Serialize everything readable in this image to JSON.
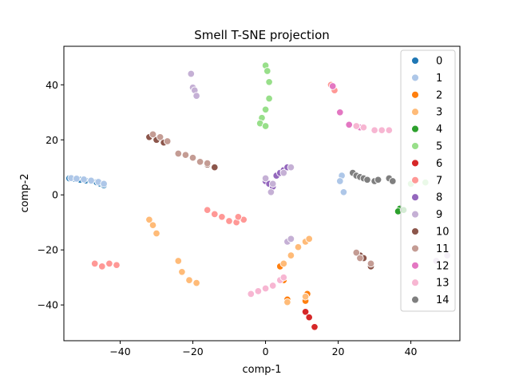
{
  "chart_data": {
    "type": "scatter",
    "title": "Smell T-SNE projection",
    "xlabel": "comp-1",
    "ylabel": "comp-2",
    "xlim": [
      -55.5,
      53.5
    ],
    "ylim": [
      -53,
      54
    ],
    "xticks": [
      -40,
      -20,
      0,
      20,
      40
    ],
    "yticks": [
      -40,
      -20,
      0,
      20,
      40
    ],
    "xtick_labels": [
      "−40",
      "−20",
      "0",
      "20",
      "40"
    ],
    "ytick_labels": [
      "−40",
      "−20",
      "0",
      "20",
      "40"
    ],
    "grid": false,
    "legend_position": "top-right",
    "series": [
      {
        "name": "0",
        "color": "#1f77b4",
        "points": [
          [
            -54,
            6
          ],
          [
            -52.5,
            5.8
          ],
          [
            -51,
            5.5
          ],
          [
            -49.5,
            5.2
          ],
          [
            -48,
            5
          ],
          [
            -46.5,
            4.6
          ],
          [
            -45.5,
            4.1
          ],
          [
            -44.5,
            3.5
          ]
        ]
      },
      {
        "name": "1",
        "color": "#aec7e8",
        "points": [
          [
            -53.5,
            6.1
          ],
          [
            -52,
            5.9
          ],
          [
            -50,
            5.6
          ],
          [
            -48,
            5.2
          ],
          [
            -46,
            4.7
          ],
          [
            -44.5,
            4
          ],
          [
            21,
            7
          ],
          [
            21.5,
            1
          ],
          [
            20.5,
            5
          ]
        ]
      },
      {
        "name": "2",
        "color": "#ff7f0e",
        "points": [
          [
            4,
            -26
          ],
          [
            5,
            -31
          ],
          [
            6,
            -38
          ],
          [
            11,
            -38.5
          ],
          [
            11.5,
            -36
          ]
        ]
      },
      {
        "name": "3",
        "color": "#ffbb78",
        "points": [
          [
            -32,
            -9
          ],
          [
            -31,
            -11
          ],
          [
            -30,
            -14
          ],
          [
            -24,
            -24
          ],
          [
            -23,
            -28
          ],
          [
            -21,
            -31
          ],
          [
            -19,
            -32
          ],
          [
            5,
            -25
          ],
          [
            7,
            -22
          ],
          [
            9,
            -19
          ],
          [
            11,
            -17
          ],
          [
            12,
            -16
          ],
          [
            6,
            -39
          ],
          [
            11,
            -37
          ]
        ]
      },
      {
        "name": "4",
        "color": "#2ca02c",
        "points": [
          [
            37,
            -5
          ],
          [
            36.5,
            -6
          ],
          [
            38,
            -5.5
          ]
        ]
      },
      {
        "name": "5",
        "color": "#98df8a",
        "points": [
          [
            0,
            47
          ],
          [
            0.5,
            45
          ],
          [
            1,
            41
          ],
          [
            1,
            35
          ],
          [
            0,
            31
          ],
          [
            -1,
            28
          ],
          [
            -1.5,
            26
          ],
          [
            0,
            25
          ],
          [
            40,
            4
          ],
          [
            44,
            4.5
          ]
        ]
      },
      {
        "name": "6",
        "color": "#d62728",
        "points": [
          [
            11,
            -42.5
          ],
          [
            12,
            -44.5
          ],
          [
            13.5,
            -48
          ]
        ]
      },
      {
        "name": "7",
        "color": "#ff9896",
        "points": [
          [
            -47,
            -25
          ],
          [
            -45,
            -26
          ],
          [
            -43,
            -25
          ],
          [
            -41,
            -25.5
          ],
          [
            -16,
            -5.5
          ],
          [
            -14,
            -7
          ],
          [
            -12,
            -8
          ],
          [
            -10,
            -9.5
          ],
          [
            -8,
            -10
          ],
          [
            -6,
            -9
          ],
          [
            -7.5,
            -8
          ],
          [
            18,
            40
          ],
          [
            19,
            38
          ]
        ]
      },
      {
        "name": "8",
        "color": "#9467bd",
        "points": [
          [
            0,
            5
          ],
          [
            1,
            4
          ],
          [
            2,
            3
          ],
          [
            3,
            7
          ],
          [
            4,
            8
          ],
          [
            5,
            9
          ],
          [
            6,
            10
          ]
        ]
      },
      {
        "name": "9",
        "color": "#c5b0d5",
        "points": [
          [
            -20.5,
            44
          ],
          [
            -20,
            39
          ],
          [
            -19.5,
            38
          ],
          [
            -19,
            36
          ],
          [
            0,
            6
          ],
          [
            1.5,
            1
          ],
          [
            2,
            4
          ],
          [
            5,
            8
          ],
          [
            7,
            10
          ],
          [
            6,
            -17
          ],
          [
            7,
            -16
          ],
          [
            47,
            -24
          ],
          [
            50,
            -22
          ]
        ]
      },
      {
        "name": "10",
        "color": "#8c564b",
        "points": [
          [
            -32,
            21
          ],
          [
            -30,
            20
          ],
          [
            -28,
            19
          ],
          [
            -16,
            11
          ],
          [
            -14,
            10
          ],
          [
            26,
            -22
          ],
          [
            27,
            -23
          ],
          [
            29,
            -26
          ]
        ]
      },
      {
        "name": "11",
        "color": "#c49c94",
        "points": [
          [
            -31,
            22
          ],
          [
            -29,
            21
          ],
          [
            -27,
            19.5
          ],
          [
            -24,
            15
          ],
          [
            -22,
            14.5
          ],
          [
            -20,
            13.5
          ],
          [
            -18,
            12
          ],
          [
            -16,
            11.5
          ],
          [
            25,
            -21
          ],
          [
            26,
            -23
          ],
          [
            29,
            -25
          ]
        ]
      },
      {
        "name": "12",
        "color": "#e377c2",
        "points": [
          [
            18.5,
            39.5
          ],
          [
            20.5,
            30
          ],
          [
            23,
            25.5
          ],
          [
            26,
            24.5
          ],
          [
            30,
            23.5
          ]
        ]
      },
      {
        "name": "13",
        "color": "#f7b6d2",
        "points": [
          [
            25,
            25
          ],
          [
            27,
            24.5
          ],
          [
            30,
            23.5
          ],
          [
            32,
            23.5
          ],
          [
            34,
            23.5
          ],
          [
            -4,
            -36
          ],
          [
            -2,
            -35
          ],
          [
            0,
            -34
          ],
          [
            2,
            -33
          ],
          [
            4,
            -31
          ],
          [
            5,
            -30
          ]
        ]
      },
      {
        "name": "14",
        "color": "#7f7f7f",
        "points": [
          [
            24,
            8
          ],
          [
            25,
            7
          ],
          [
            26,
            6.5
          ],
          [
            27,
            6
          ],
          [
            28,
            5.5
          ],
          [
            30,
            5
          ],
          [
            31,
            5.5
          ],
          [
            34,
            6
          ],
          [
            35,
            5
          ]
        ]
      }
    ]
  }
}
